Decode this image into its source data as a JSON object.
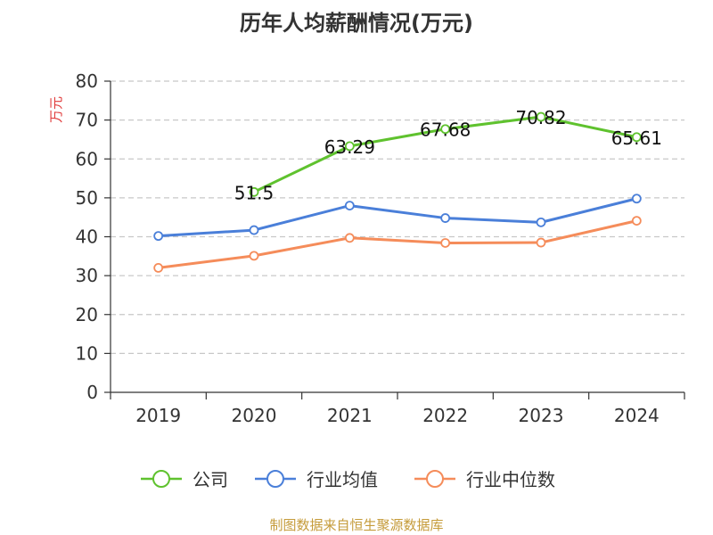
{
  "title": "历年人均薪酬情况(万元)",
  "source_note": "制图数据来自恒生聚源数据库",
  "colors": {
    "company": "#5fc22e",
    "industry_avg": "#4a7fd9",
    "industry_median": "#f58c5a",
    "axis": "#333333",
    "grid": "#c8c8c8",
    "unit": "#e03a3a"
  },
  "chart_data": {
    "type": "line",
    "title": "历年人均薪酬情况(万元)",
    "ylabel": "万元",
    "xlabel": "",
    "categories": [
      "2019",
      "2020",
      "2021",
      "2022",
      "2023",
      "2024"
    ],
    "ylim": [
      0,
      80
    ],
    "yticks": [
      0,
      10,
      20,
      30,
      40,
      50,
      60,
      70,
      80
    ],
    "grid": true,
    "legend_position": "bottom",
    "series": [
      {
        "name": "公司",
        "values": [
          null,
          51.5,
          63.29,
          67.68,
          70.82,
          65.61
        ],
        "labels": [
          null,
          "51.5",
          "63.29",
          "67.68",
          "70.82",
          "65.61"
        ]
      },
      {
        "name": "行业均值",
        "values": [
          40.2,
          41.7,
          48.0,
          44.8,
          43.7,
          49.8
        ]
      },
      {
        "name": "行业中位数",
        "values": [
          32.0,
          35.1,
          39.7,
          38.4,
          38.5,
          44.1
        ]
      }
    ]
  }
}
